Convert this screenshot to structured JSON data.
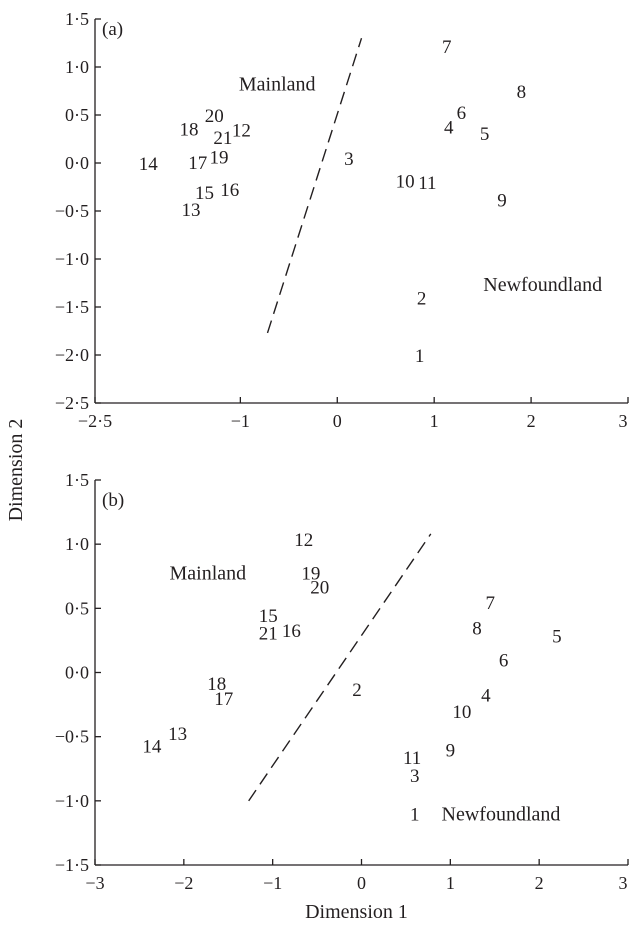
{
  "chart_data": [
    {
      "type": "scatter",
      "panel_label": "(a)",
      "xlim": [
        -2.5,
        3
      ],
      "ylim": [
        -2.5,
        1.5
      ],
      "x_ticks": [
        -2.5,
        -1,
        0,
        1,
        2,
        3
      ],
      "x_tick_labels": [
        "−2·5",
        "−1",
        "0",
        "1",
        "2",
        "3"
      ],
      "y_ticks": [
        1.5,
        1.0,
        0.5,
        0.0,
        -0.5,
        -1.0,
        -1.5,
        -2.0,
        -2.5
      ],
      "y_tick_labels": [
        "1·5",
        "1·0",
        "0·5",
        "0·0",
        "−0·5",
        "−1·0",
        "−1·5",
        "−2·0",
        "−2·5"
      ],
      "xlabel": "",
      "ylabel": "",
      "grid": false,
      "points": [
        {
          "label": "1",
          "x": 0.85,
          "y": -2.0
        },
        {
          "label": "2",
          "x": 0.87,
          "y": -1.4
        },
        {
          "label": "3",
          "x": 0.12,
          "y": 0.05
        },
        {
          "label": "4",
          "x": 1.15,
          "y": 0.38
        },
        {
          "label": "5",
          "x": 1.52,
          "y": 0.31
        },
        {
          "label": "6",
          "x": 1.28,
          "y": 0.53
        },
        {
          "label": "7",
          "x": 1.13,
          "y": 1.22
        },
        {
          "label": "8",
          "x": 1.9,
          "y": 0.75
        },
        {
          "label": "9",
          "x": 1.7,
          "y": -0.38
        },
        {
          "label": "10",
          "x": 0.7,
          "y": -0.18
        },
        {
          "label": "11",
          "x": 0.93,
          "y": -0.2
        },
        {
          "label": "12",
          "x": -0.99,
          "y": 0.35
        },
        {
          "label": "13",
          "x": -1.51,
          "y": -0.48
        },
        {
          "label": "14",
          "x": -1.95,
          "y": 0.0
        },
        {
          "label": "15",
          "x": -1.37,
          "y": -0.3
        },
        {
          "label": "16",
          "x": -1.11,
          "y": -0.27
        },
        {
          "label": "17",
          "x": -1.44,
          "y": 0.01
        },
        {
          "label": "18",
          "x": -1.53,
          "y": 0.36
        },
        {
          "label": "19",
          "x": -1.22,
          "y": 0.07
        },
        {
          "label": "20",
          "x": -1.27,
          "y": 0.5
        },
        {
          "label": "21",
          "x": -1.18,
          "y": 0.27
        }
      ],
      "divider": {
        "x1": -0.72,
        "y1": -1.77,
        "x2": 0.25,
        "y2": 1.3
      },
      "annotations": [
        {
          "text": "Mainland",
          "x": -0.62,
          "y": 0.83
        },
        {
          "text": "Newfoundland",
          "x": 2.12,
          "y": -1.26
        }
      ]
    },
    {
      "type": "scatter",
      "panel_label": "(b)",
      "xlim": [
        -3,
        3
      ],
      "ylim": [
        -1.5,
        1.5
      ],
      "x_ticks": [
        -3,
        -2,
        -1,
        0,
        1,
        2,
        3
      ],
      "x_tick_labels": [
        "−3",
        "−2",
        "−1",
        "0",
        "1",
        "2",
        "3"
      ],
      "y_ticks": [
        1.5,
        1.0,
        0.5,
        0.0,
        -0.5,
        -1.0,
        -1.5
      ],
      "y_tick_labels": [
        "1·5",
        "1·0",
        "0·5",
        "0·0",
        "−0·5",
        "−1·0",
        "−1·5"
      ],
      "xlabel": "Dimension 1",
      "ylabel": "",
      "grid": false,
      "points": [
        {
          "label": "1",
          "x": 0.6,
          "y": -1.1
        },
        {
          "label": "2",
          "x": -0.05,
          "y": -0.13
        },
        {
          "label": "3",
          "x": 0.6,
          "y": -0.8
        },
        {
          "label": "4",
          "x": 1.4,
          "y": -0.17
        },
        {
          "label": "5",
          "x": 2.2,
          "y": 0.29
        },
        {
          "label": "6",
          "x": 1.6,
          "y": 0.1
        },
        {
          "label": "7",
          "x": 1.45,
          "y": 0.55
        },
        {
          "label": "8",
          "x": 1.3,
          "y": 0.35
        },
        {
          "label": "9",
          "x": 1.0,
          "y": -0.6
        },
        {
          "label": "10",
          "x": 1.13,
          "y": -0.3
        },
        {
          "label": "11",
          "x": 0.57,
          "y": -0.66
        },
        {
          "label": "12",
          "x": -0.65,
          "y": 1.04
        },
        {
          "label": "13",
          "x": -2.07,
          "y": -0.47
        },
        {
          "label": "14",
          "x": -2.36,
          "y": -0.57
        },
        {
          "label": "15",
          "x": -1.05,
          "y": 0.45
        },
        {
          "label": "16",
          "x": -0.79,
          "y": 0.33
        },
        {
          "label": "17",
          "x": -1.55,
          "y": -0.2
        },
        {
          "label": "18",
          "x": -1.63,
          "y": -0.08
        },
        {
          "label": "19",
          "x": -0.57,
          "y": 0.78
        },
        {
          "label": "20",
          "x": -0.47,
          "y": 0.67
        },
        {
          "label": "21",
          "x": -1.05,
          "y": 0.31
        }
      ],
      "divider": {
        "x1": -1.27,
        "y1": -1.0,
        "x2": 0.78,
        "y2": 1.08
      },
      "annotations": [
        {
          "text": "Mainland",
          "x": -1.73,
          "y": 0.78
        },
        {
          "text": "Newfoundland",
          "x": 1.57,
          "y": -1.1
        }
      ]
    }
  ],
  "shared_ylabel": "Dimension 2"
}
